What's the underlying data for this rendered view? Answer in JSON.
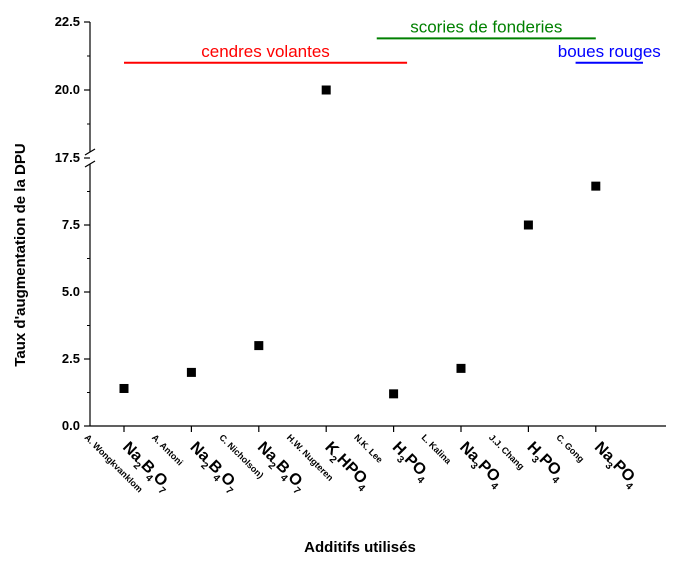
{
  "chart_data": {
    "type": "scatter",
    "title": "",
    "xlabel": "Additifs utilisés",
    "ylabel": "Taux d'augmentation de la DPU",
    "y_axis_break": [
      10,
      17.5
    ],
    "ylim_lower": [
      0,
      10
    ],
    "ylim_upper": [
      17.5,
      22.5
    ],
    "yticks": [
      "0.0",
      "2.5",
      "5.0",
      "7.5",
      "17.5",
      "20.0",
      "22.5"
    ],
    "grid": false,
    "categories": [
      {
        "compound": [
          "Na",
          "2",
          "B",
          "4",
          "O",
          "7"
        ],
        "author": "A. Wongkvanklom"
      },
      {
        "compound": [
          "Na",
          "2",
          "B",
          "4",
          "O",
          "7"
        ],
        "author": "A. Antoni"
      },
      {
        "compound": [
          "Na",
          "2",
          "B",
          "4",
          "O",
          "7"
        ],
        "author": "C. Nicholson)"
      },
      {
        "compound": [
          "K",
          "2",
          "HPO",
          "4"
        ],
        "author": "H.W. Nugteren"
      },
      {
        "compound": [
          "H",
          "3",
          "PO",
          "4"
        ],
        "author": "N.K. Lee"
      },
      {
        "compound": [
          "Na",
          "3",
          "PO",
          "4"
        ],
        "author": "L. Kalina"
      },
      {
        "compound": [
          "H",
          "3",
          "PO",
          "4"
        ],
        "author": "J.J. Chang"
      },
      {
        "compound": [
          "Na",
          "3",
          "PO",
          "4"
        ],
        "author": "C. Gong"
      }
    ],
    "values": [
      1.4,
      2.0,
      3.0,
      20.0,
      1.2,
      2.15,
      7.5,
      8.95
    ],
    "marker_color": "#000000",
    "annotations": [
      {
        "text": "cendres volantes",
        "color": "#ff0000",
        "from_category": 0,
        "to_category": 4.2,
        "level": 21.0
      },
      {
        "text": "scories de fonderies",
        "color": "#008000",
        "from_category": 3.75,
        "to_category": 7.0,
        "level": 21.9
      },
      {
        "text": "boues rouges",
        "color": "#0000ff",
        "from_category": 6.7,
        "to_category": 7.7,
        "level": 21.0
      }
    ]
  }
}
